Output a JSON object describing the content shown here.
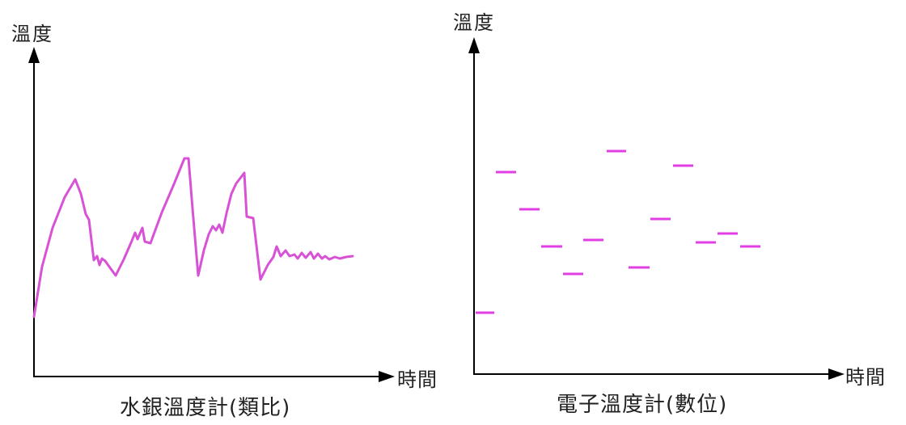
{
  "colors": {
    "axis": "#000000",
    "curve": "#d852d6",
    "ticks": "#e23ee6",
    "text": "#222222"
  },
  "left_panel": {
    "y_label": "溫度",
    "x_label": "時間",
    "caption": "水銀溫度計(類比)"
  },
  "right_panel": {
    "y_label": "溫度",
    "x_label": "時間",
    "caption": "電子溫度計(數位)"
  }
}
